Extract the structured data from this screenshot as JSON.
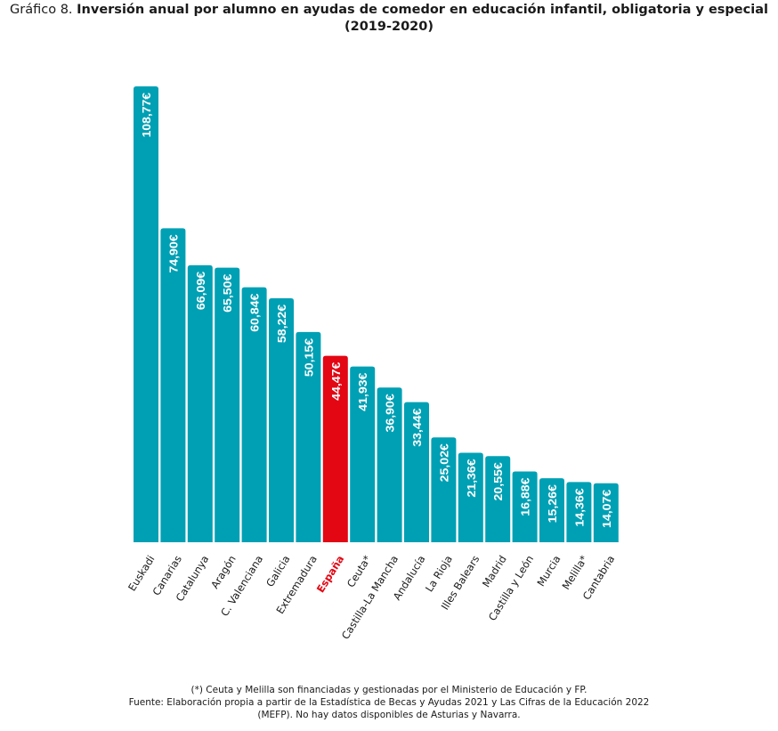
{
  "chart_data": {
    "type": "bar",
    "title_prefix": "Gráfico 8.",
    "title": "Inversión anual por alumno en ayudas de comedor en educación infantil, obligatoria y especial (2019-2020)",
    "categories": [
      "Euskadi",
      "Canarias",
      "Catalunya",
      "Aragón",
      "C. Valenciana",
      "Galicia",
      "Extremadura",
      "España",
      "Ceuta*",
      "Castilla-La Mancha",
      "Andalucía",
      "La Rioja",
      "Illes Balears",
      "Madrid",
      "Castilla y León",
      "Murcia",
      "Melilla*",
      "Cantabria"
    ],
    "values": [
      108.77,
      74.9,
      66.09,
      65.5,
      60.84,
      58.22,
      50.15,
      44.47,
      41.93,
      36.9,
      33.44,
      25.02,
      21.36,
      20.55,
      16.88,
      15.26,
      14.36,
      14.07
    ],
    "data_labels": [
      "108,77€",
      "74,90€",
      "66,09€",
      "65,50€",
      "60,84€",
      "58,22€",
      "50,15€",
      "44,47€",
      "41,93€",
      "36,90€",
      "33,44€",
      "25,02€",
      "21,36€",
      "20,55€",
      "16,88€",
      "15,26€",
      "14,36€",
      "14,07€"
    ],
    "highlight": "España",
    "colors": {
      "bar": "#00a0b4",
      "highlight": "#e30613"
    },
    "grid": false,
    "xlabel": "",
    "ylabel": ""
  },
  "footnote": {
    "line1": "(*) Ceuta y Melilla son financiadas y gestionadas por el Ministerio de Educación y FP.",
    "line2": "Fuente: Elaboración propia a partir de la Estadística de Becas y Ayudas 2021 y Las Cifras de la Educación 2022",
    "line3": "(MEFP). No hay datos disponibles de Asturias y Navarra."
  }
}
